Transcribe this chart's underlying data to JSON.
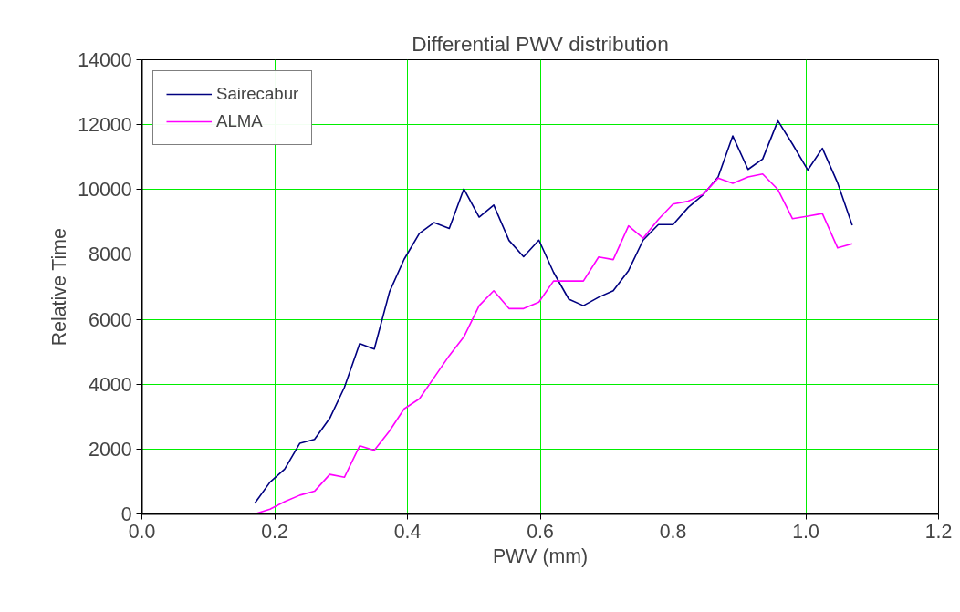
{
  "chart_data": {
    "type": "line",
    "title": "Differential PWV distribution",
    "xlabel": "PWV (mm)",
    "ylabel": "Relative Time",
    "x": [
      0.17,
      0.193,
      0.215,
      0.238,
      0.26,
      0.283,
      0.305,
      0.328,
      0.35,
      0.373,
      0.395,
      0.418,
      0.44,
      0.463,
      0.485,
      0.508,
      0.53,
      0.553,
      0.575,
      0.598,
      0.62,
      0.643,
      0.665,
      0.688,
      0.71,
      0.733,
      0.755,
      0.778,
      0.8,
      0.823,
      0.845,
      0.868,
      0.89,
      0.913,
      0.935,
      0.958,
      0.98,
      1.003,
      1.025,
      1.048,
      1.07
    ],
    "series": [
      {
        "name": "Sairecabur",
        "color": "#000080",
        "values": [
          330,
          980,
          1380,
          2180,
          2300,
          2950,
          3900,
          5250,
          5080,
          6850,
          7850,
          8650,
          8980,
          8800,
          10020,
          9150,
          9520,
          8430,
          7930,
          8440,
          7450,
          6620,
          6420,
          6680,
          6880,
          7500,
          8440,
          8920,
          8920,
          9450,
          9830,
          10390,
          11650,
          10620,
          10940,
          12120,
          11400,
          10600,
          11270,
          10200,
          8900
        ]
      },
      {
        "name": "ALMA",
        "color": "#ff00ff",
        "values": [
          0,
          150,
          380,
          580,
          700,
          1220,
          1130,
          2100,
          1960,
          2560,
          3240,
          3550,
          4200,
          4880,
          5460,
          6420,
          6880,
          6330,
          6330,
          6530,
          7180,
          7180,
          7180,
          7920,
          7840,
          8880,
          8500,
          9080,
          9550,
          9640,
          9850,
          10350,
          10190,
          10390,
          10480,
          10000,
          9100,
          9180,
          9260,
          8200,
          8330
        ]
      }
    ],
    "xlim": [
      0,
      1.2
    ],
    "xticks": [
      {
        "value": 0,
        "label": "0.0"
      },
      {
        "value": 0.2,
        "label": "0.2"
      },
      {
        "value": 0.4,
        "label": "0.4"
      },
      {
        "value": 0.6,
        "label": "0.6"
      },
      {
        "value": 0.8,
        "label": "0.8"
      },
      {
        "value": 1.0,
        "label": "1.0"
      },
      {
        "value": 1.2,
        "label": "1.2"
      }
    ],
    "ylim": [
      0,
      14000
    ],
    "yticks": [
      0,
      2000,
      4000,
      6000,
      8000,
      10000,
      12000,
      14000
    ],
    "grid": true,
    "legend": "top left",
    "marker": "none",
    "line_style": "solid"
  }
}
